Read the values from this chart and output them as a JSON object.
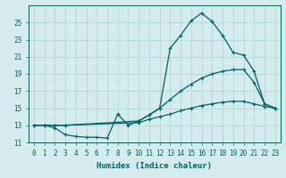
{
  "xlabel": "Humidex (Indice chaleur)",
  "bg_color": "#d4ecee",
  "grid_color": "#b8d8da",
  "line_color": "#006060",
  "ylim": [
    11,
    27
  ],
  "xlim": [
    -0.5,
    23.5
  ],
  "yticks": [
    11,
    13,
    15,
    17,
    19,
    21,
    23,
    25
  ],
  "xticks": [
    0,
    1,
    2,
    3,
    4,
    5,
    6,
    7,
    8,
    9,
    10,
    11,
    12,
    13,
    14,
    15,
    16,
    17,
    18,
    19,
    20,
    21,
    22,
    23
  ],
  "line1_x": [
    0,
    1,
    2,
    3,
    4,
    5,
    6,
    7,
    8,
    9,
    10,
    11,
    12,
    13,
    14,
    15,
    16,
    17,
    18,
    19,
    20,
    21,
    22,
    23
  ],
  "line1_y": [
    13,
    13,
    12.7,
    11.9,
    11.7,
    11.6,
    11.6,
    11.5,
    14.3,
    13,
    13.5,
    14.2,
    15,
    22,
    23.5,
    25.2,
    26.1,
    25.1,
    23.5,
    21.5,
    21.2,
    19.3,
    15.5,
    15
  ],
  "line2_x": [
    0,
    1,
    2,
    3,
    10,
    11,
    12,
    13,
    14,
    15,
    16,
    17,
    18,
    19,
    20,
    21,
    22,
    23
  ],
  "line2_y": [
    13,
    13,
    13,
    13,
    13.5,
    14.2,
    15,
    16,
    17,
    17.8,
    18.5,
    19,
    19.3,
    19.5,
    19.5,
    18,
    15.5,
    15
  ],
  "line3_x": [
    0,
    1,
    2,
    3,
    10,
    11,
    12,
    13,
    14,
    15,
    16,
    17,
    18,
    19,
    20,
    21,
    22,
    23
  ],
  "line3_y": [
    13,
    13,
    13,
    13,
    13.3,
    13.7,
    14,
    14.3,
    14.7,
    15,
    15.3,
    15.5,
    15.7,
    15.8,
    15.8,
    15.5,
    15.2,
    15
  ]
}
